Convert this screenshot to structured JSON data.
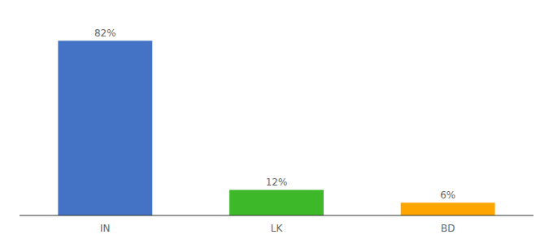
{
  "chart_data": {
    "type": "bar",
    "categories": [
      "IN",
      "LK",
      "BD"
    ],
    "values": [
      82,
      12,
      6
    ],
    "value_labels": [
      "82%",
      "12%",
      "6%"
    ],
    "colors": [
      "#4472C4",
      "#3CB828",
      "#FFA500"
    ],
    "ylim": [
      0,
      92
    ],
    "data_labels": true,
    "tick_labels": "x",
    "grid": false
  }
}
